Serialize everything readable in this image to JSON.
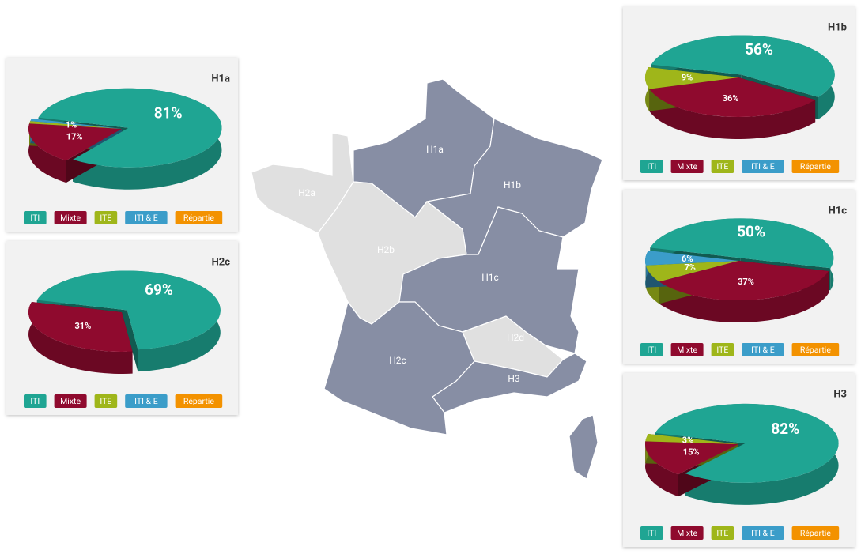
{
  "map": {
    "regions": [
      "H1a",
      "H1b",
      "H1c",
      "H2a",
      "H2b",
      "H2c",
      "H2d",
      "H3"
    ]
  },
  "chart_data": [
    {
      "type": "pie",
      "title": "H1a",
      "categories": [
        "ITI",
        "Mixte",
        "ITE",
        "ITI & E",
        "Répartie"
      ],
      "colors": [
        "#1fa593",
        "#8f0a2e",
        "#9fb61a",
        "#3b9dc9",
        "#f39200"
      ],
      "values": [
        81,
        17,
        1,
        1,
        0
      ],
      "value_labels": [
        "81%",
        "17%",
        "1%",
        null,
        null
      ]
    },
    {
      "type": "pie",
      "title": "H2c",
      "categories": [
        "ITI",
        "Mixte",
        "ITE",
        "ITI & E",
        "Répartie"
      ],
      "colors": [
        "#1fa593",
        "#8f0a2e",
        "#9fb61a",
        "#3b9dc9",
        "#f39200"
      ],
      "values": [
        69,
        31,
        0,
        0,
        0
      ],
      "value_labels": [
        "69%",
        "31%",
        null,
        null,
        null
      ]
    },
    {
      "type": "pie",
      "title": "H1b",
      "categories": [
        "ITI",
        "Mixte",
        "ITE",
        "ITI & E",
        "Répartie"
      ],
      "colors": [
        "#1fa593",
        "#8f0a2e",
        "#9fb61a",
        "#3b9dc9",
        "#f39200"
      ],
      "values": [
        56,
        36,
        9,
        0,
        0
      ],
      "value_labels": [
        "56%",
        "36%",
        "9%",
        null,
        null
      ]
    },
    {
      "type": "pie",
      "title": "H1c",
      "categories": [
        "ITI",
        "Mixte",
        "ITE",
        "ITI & E",
        "Répartie"
      ],
      "colors": [
        "#1fa593",
        "#8f0a2e",
        "#9fb61a",
        "#3b9dc9",
        "#f39200"
      ],
      "values": [
        50,
        37,
        7,
        6,
        0
      ],
      "value_labels": [
        "50%",
        "37%",
        "7%",
        "6%",
        null
      ]
    },
    {
      "type": "pie",
      "title": "H3",
      "categories": [
        "ITI",
        "Mixte",
        "ITE",
        "ITI & E",
        "Répartie"
      ],
      "colors": [
        "#1fa593",
        "#8f0a2e",
        "#9fb61a",
        "#3b9dc9",
        "#f39200"
      ],
      "values": [
        82,
        15,
        3,
        0,
        0
      ],
      "value_labels": [
        "82%",
        "15%",
        "3%",
        null,
        null
      ]
    }
  ]
}
